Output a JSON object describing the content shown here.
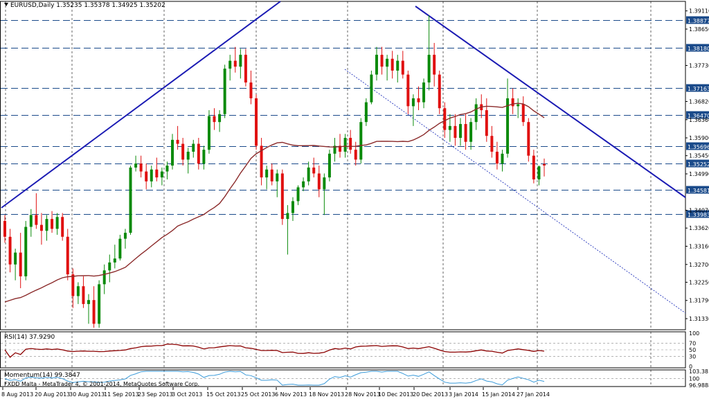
{
  "chart": {
    "title": "EURUSD,Daily  1.35235 1.35378 1.34925 1.35202",
    "copyright": "FXDD Malta - MetaTrader 4, © 2001-2014, MetaQuotes Software Corp.",
    "price_ticks": [
      "1.39110",
      "1.38650",
      "1.37730",
      "1.36820",
      "1.36360",
      "1.35900",
      "1.35450",
      "1.34990",
      "1.34070",
      "1.33620",
      "1.33160",
      "1.32700",
      "1.32250",
      "1.31790",
      "1.31330"
    ],
    "levels": [
      "1.38877",
      "1.38180",
      "1.37163",
      "1.36470",
      "1.35696",
      "1.35252",
      "1.34581",
      "1.33983"
    ],
    "date_labels": [
      "8 Aug 2013",
      "20 Aug 2013",
      "30 Aug 2013",
      "11 Sep 2013",
      "23 Sep 2013",
      "3 Oct 2013",
      "15 Oct 2013",
      "25 Oct 2013",
      "6 Nov 2013",
      "18 Nov 2013",
      "28 Nov 2013",
      "10 Dec 2013",
      "20 Dec 2013",
      "3 Jan 2014",
      "15 Jan 2014",
      "27 Jan 2014"
    ],
    "colors": {
      "bull": "#0a8a0a",
      "bear": "#e01010",
      "ma": "#8b2a2a",
      "trend": "#1c1cb4",
      "dotted": "#2233bb",
      "grid": "#000000",
      "rsi": "#8b0000",
      "momentum": "#3a9ad9",
      "levelLine": "#1a4a8a"
    }
  },
  "rsi": {
    "title": "RSI(14) 37.9290",
    "ticks": [
      "100",
      "70",
      "50",
      "30",
      "0"
    ]
  },
  "momentum": {
    "title": "Momentum(14) 99.3847",
    "ticks": [
      "103.38",
      "100",
      "96.9888"
    ]
  },
  "chart_data": {
    "type": "candlestick",
    "symbol": "EURUSD",
    "timeframe": "Daily",
    "last_bar": {
      "open": 1.35235,
      "high": 1.35378,
      "low": 1.34925,
      "close": 1.35202
    },
    "ylim": [
      1.3105,
      1.3935
    ],
    "ohlc": [
      [
        1.338,
        1.3395,
        1.3325,
        1.334
      ],
      [
        1.334,
        1.336,
        1.325,
        1.327
      ],
      [
        1.327,
        1.331,
        1.323,
        1.33
      ],
      [
        1.33,
        1.335,
        1.321,
        1.324
      ],
      [
        1.324,
        1.338,
        1.323,
        1.3365
      ],
      [
        1.3365,
        1.341,
        1.334,
        1.3395
      ],
      [
        1.3395,
        1.345,
        1.336,
        1.337
      ],
      [
        1.337,
        1.34,
        1.332,
        1.3355
      ],
      [
        1.3355,
        1.3395,
        1.333,
        1.3385
      ],
      [
        1.3385,
        1.3405,
        1.335,
        1.336
      ],
      [
        1.336,
        1.34,
        1.3345,
        1.339
      ],
      [
        1.339,
        1.34,
        1.333,
        1.334
      ],
      [
        1.334,
        1.336,
        1.323,
        1.3245
      ],
      [
        1.3245,
        1.326,
        1.316,
        1.319
      ],
      [
        1.319,
        1.3225,
        1.317,
        1.3215
      ],
      [
        1.3215,
        1.324,
        1.316,
        1.317
      ],
      [
        1.317,
        1.3195,
        1.312,
        1.318
      ],
      [
        1.318,
        1.3215,
        1.311,
        1.312
      ],
      [
        1.312,
        1.323,
        1.311,
        1.322
      ],
      [
        1.322,
        1.327,
        1.3195,
        1.3255
      ],
      [
        1.3255,
        1.3295,
        1.3225,
        1.3275
      ],
      [
        1.3275,
        1.332,
        1.326,
        1.3285
      ],
      [
        1.3285,
        1.3345,
        1.328,
        1.3335
      ],
      [
        1.3335,
        1.336,
        1.331,
        1.335
      ],
      [
        1.335,
        1.352,
        1.3345,
        1.3515
      ],
      [
        1.3515,
        1.3545,
        1.3505,
        1.3525
      ],
      [
        1.3525,
        1.3545,
        1.349,
        1.3505
      ],
      [
        1.3505,
        1.3525,
        1.346,
        1.348
      ],
      [
        1.348,
        1.352,
        1.3465,
        1.351
      ],
      [
        1.351,
        1.354,
        1.348,
        1.349
      ],
      [
        1.349,
        1.3515,
        1.347,
        1.3505
      ],
      [
        1.3505,
        1.353,
        1.3485,
        1.352
      ],
      [
        1.352,
        1.36,
        1.351,
        1.3585
      ],
      [
        1.3585,
        1.362,
        1.356,
        1.3575
      ],
      [
        1.3575,
        1.359,
        1.352,
        1.3535
      ],
      [
        1.3535,
        1.3565,
        1.35,
        1.3555
      ],
      [
        1.3555,
        1.3585,
        1.354,
        1.3575
      ],
      [
        1.3575,
        1.359,
        1.351,
        1.3525
      ],
      [
        1.3525,
        1.357,
        1.351,
        1.356
      ],
      [
        1.356,
        1.366,
        1.355,
        1.3645
      ],
      [
        1.3645,
        1.3665,
        1.361,
        1.363
      ],
      [
        1.363,
        1.366,
        1.3605,
        1.365
      ],
      [
        1.365,
        1.3775,
        1.364,
        1.3765
      ],
      [
        1.3765,
        1.38,
        1.3735,
        1.3785
      ],
      [
        1.3785,
        1.382,
        1.3755,
        1.377
      ],
      [
        1.377,
        1.3815,
        1.374,
        1.38
      ],
      [
        1.38,
        1.3815,
        1.372,
        1.373
      ],
      [
        1.373,
        1.376,
        1.3675,
        1.369
      ],
      [
        1.369,
        1.37,
        1.356,
        1.357
      ],
      [
        1.357,
        1.359,
        1.347,
        1.349
      ],
      [
        1.349,
        1.352,
        1.346,
        1.351
      ],
      [
        1.351,
        1.3525,
        1.347,
        1.348
      ],
      [
        1.348,
        1.351,
        1.344,
        1.35
      ],
      [
        1.35,
        1.351,
        1.337,
        1.3385
      ],
      [
        1.3385,
        1.342,
        1.3295,
        1.34
      ],
      [
        1.34,
        1.344,
        1.338,
        1.343
      ],
      [
        1.343,
        1.347,
        1.342,
        1.3465
      ],
      [
        1.3465,
        1.349,
        1.3455,
        1.348
      ],
      [
        1.348,
        1.353,
        1.347,
        1.3515
      ],
      [
        1.3515,
        1.354,
        1.349,
        1.35
      ],
      [
        1.35,
        1.352,
        1.344,
        1.346
      ],
      [
        1.346,
        1.35,
        1.3395,
        1.349
      ],
      [
        1.349,
        1.356,
        1.348,
        1.355
      ],
      [
        1.355,
        1.359,
        1.353,
        1.357
      ],
      [
        1.357,
        1.36,
        1.354,
        1.3555
      ],
      [
        1.3555,
        1.36,
        1.354,
        1.359
      ],
      [
        1.359,
        1.361,
        1.355,
        1.356
      ],
      [
        1.356,
        1.358,
        1.352,
        1.3535
      ],
      [
        1.3535,
        1.364,
        1.3525,
        1.363
      ],
      [
        1.363,
        1.369,
        1.362,
        1.368
      ],
      [
        1.368,
        1.376,
        1.3675,
        1.375
      ],
      [
        1.375,
        1.382,
        1.3735,
        1.38
      ],
      [
        1.38,
        1.382,
        1.375,
        1.377
      ],
      [
        1.377,
        1.38,
        1.3735,
        1.379
      ],
      [
        1.379,
        1.381,
        1.374,
        1.376
      ],
      [
        1.376,
        1.38,
        1.373,
        1.3785
      ],
      [
        1.3785,
        1.381,
        1.374,
        1.375
      ],
      [
        1.375,
        1.376,
        1.365,
        1.367
      ],
      [
        1.367,
        1.37,
        1.362,
        1.369
      ],
      [
        1.369,
        1.372,
        1.366,
        1.368
      ],
      [
        1.368,
        1.374,
        1.3665,
        1.373
      ],
      [
        1.373,
        1.39,
        1.371,
        1.38
      ],
      [
        1.38,
        1.383,
        1.372,
        1.375
      ],
      [
        1.375,
        1.376,
        1.365,
        1.3665
      ],
      [
        1.3665,
        1.368,
        1.359,
        1.361
      ],
      [
        1.361,
        1.365,
        1.358,
        1.362
      ],
      [
        1.362,
        1.365,
        1.357,
        1.359
      ],
      [
        1.359,
        1.364,
        1.357,
        1.3625
      ],
      [
        1.3625,
        1.365,
        1.356,
        1.358
      ],
      [
        1.358,
        1.364,
        1.356,
        1.363
      ],
      [
        1.363,
        1.369,
        1.361,
        1.3675
      ],
      [
        1.3675,
        1.37,
        1.364,
        1.366
      ],
      [
        1.366,
        1.369,
        1.358,
        1.3595
      ],
      [
        1.3595,
        1.362,
        1.354,
        1.3555
      ],
      [
        1.3555,
        1.358,
        1.351,
        1.3525
      ],
      [
        1.3525,
        1.356,
        1.3505,
        1.355
      ],
      [
        1.355,
        1.374,
        1.354,
        1.369
      ],
      [
        1.369,
        1.3715,
        1.365,
        1.367
      ],
      [
        1.367,
        1.369,
        1.364,
        1.3675
      ],
      [
        1.3675,
        1.3695,
        1.362,
        1.363
      ],
      [
        1.363,
        1.364,
        1.353,
        1.3545
      ],
      [
        1.3545,
        1.356,
        1.3475,
        1.3485
      ],
      [
        1.3485,
        1.352,
        1.347,
        1.3518
      ],
      [
        1.35235,
        1.35378,
        1.34925,
        1.35202
      ]
    ],
    "ma": {
      "start": 1.3175,
      "end": 1.361
    },
    "levels": [
      1.38877,
      1.3818,
      1.37163,
      1.3647,
      1.35696,
      1.35252,
      1.34581,
      1.33983
    ],
    "rsi_last": 37.929,
    "momentum_last": 99.3847
  }
}
